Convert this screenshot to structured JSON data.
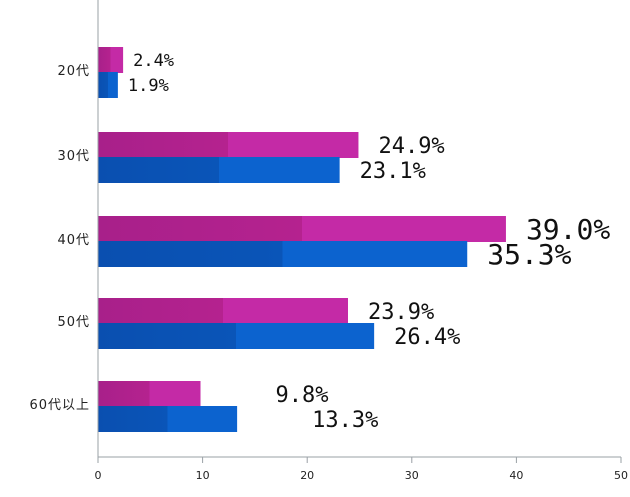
{
  "chart_data": {
    "type": "bar",
    "orientation": "horizontal",
    "categories": [
      "20代",
      "30代",
      "40代",
      "50代",
      "60代以上"
    ],
    "series": [
      {
        "values": [
          2.4,
          24.9,
          39.0,
          23.9,
          9.8
        ],
        "color": "#c0269e"
      },
      {
        "values": [
          1.9,
          23.1,
          35.3,
          26.4,
          13.3
        ],
        "color": "#0b5fc9"
      }
    ],
    "value_labels": [
      [
        "2.4%",
        "24.9%",
        "39.0%",
        "23.9%",
        "9.8%"
      ],
      [
        "1.9%",
        "23.1%",
        "35.3%",
        "26.4%",
        "13.3%"
      ]
    ],
    "xlim": [
      0,
      50
    ],
    "xticks": [
      0,
      10,
      20,
      30,
      40,
      50
    ],
    "xlabel": "",
    "ylabel": "",
    "title": "",
    "grid": false
  }
}
